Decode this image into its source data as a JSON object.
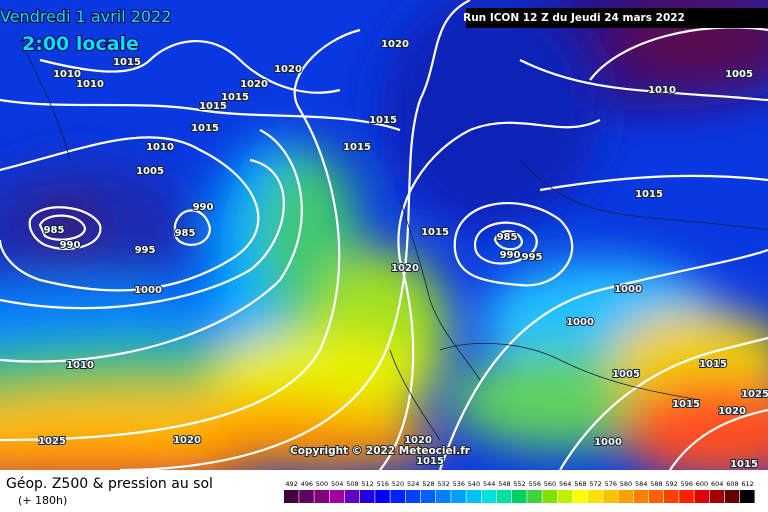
{
  "header": {
    "date": "Vendredi 1 avril 2022",
    "time": "2:00 locale",
    "run": "Run ICON 12 Z du Jeudi 24 mars 2022"
  },
  "copyright": "Copyright © 2022 Meteociel.fr",
  "isobar_labels": [
    "1020",
    "1015",
    "1020",
    "1010",
    "1010",
    "1020",
    "1015",
    "1015",
    "1015",
    "1015",
    "1010",
    "1015",
    "1005",
    "990",
    "985",
    "985",
    "990",
    "995",
    "1000",
    "1015",
    "1020",
    "985",
    "990",
    "995",
    "1010",
    "1005",
    "1015",
    "1000",
    "1000",
    "1005",
    "1015",
    "1015",
    "1020",
    "1025",
    "1010",
    "1025",
    "1020",
    "1020",
    "1015",
    "1000",
    "1015"
  ],
  "footer": {
    "title": "Géop. Z500 & pression au sol",
    "lead": "(+ 180h)"
  },
  "legend": {
    "levels": [
      492,
      496,
      500,
      504,
      508,
      512,
      516,
      520,
      524,
      528,
      532,
      536,
      540,
      544,
      548,
      552,
      556,
      560,
      564,
      568,
      572,
      576,
      580,
      584,
      588,
      592,
      596,
      600,
      604,
      608,
      612
    ],
    "colors": [
      "#400040",
      "#600060",
      "#800080",
      "#a000a0",
      "#6000c0",
      "#2000e0",
      "#0000ff",
      "#0020ff",
      "#0040ff",
      "#0060ff",
      "#0080ff",
      "#00a0ff",
      "#00c0ff",
      "#00e0e0",
      "#00e0a0",
      "#00d060",
      "#40d040",
      "#80e000",
      "#c0f000",
      "#ffff00",
      "#ffe000",
      "#ffc000",
      "#ffa000",
      "#ff8000",
      "#ff6000",
      "#ff4000",
      "#ff2000",
      "#e00000",
      "#a00000",
      "#600000",
      "#000000"
    ]
  }
}
